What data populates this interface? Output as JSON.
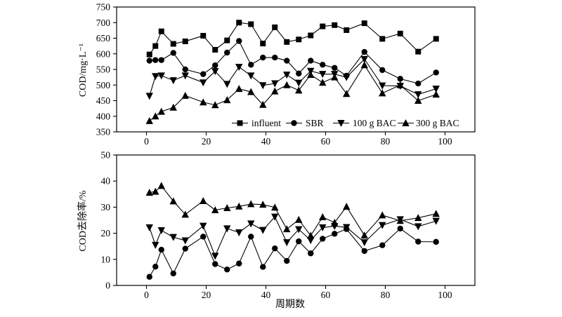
{
  "figure": {
    "background": "#ffffff",
    "ink_color": "#000000",
    "x_axis_label": "周期数"
  },
  "chart_data": [
    {
      "type": "line",
      "panel": "top",
      "title": "",
      "xlabel": "",
      "ylabel": "COD/mg·L⁻¹",
      "xlim": [
        -10,
        110
      ],
      "ylim": [
        350,
        750
      ],
      "xticks": [
        0,
        20,
        40,
        60,
        80,
        100
      ],
      "yticks": [
        350,
        400,
        450,
        500,
        550,
        600,
        650,
        700,
        750
      ],
      "grid": false,
      "legend_position": "inside-bottom",
      "x": [
        1,
        3,
        5,
        9,
        13,
        19,
        23,
        27,
        31,
        35,
        39,
        43,
        47,
        51,
        55,
        59,
        63,
        67,
        73,
        79,
        85,
        91,
        97
      ],
      "series": [
        {
          "name": "influent",
          "marker": "square",
          "values": [
            598,
            625,
            672,
            632,
            640,
            658,
            613,
            643,
            700,
            695,
            633,
            685,
            638,
            646,
            659,
            688,
            692,
            676,
            698,
            648,
            665,
            607,
            648
          ]
        },
        {
          "name": "SBR",
          "marker": "circle",
          "values": [
            578,
            580,
            580,
            603,
            550,
            535,
            563,
            604,
            641,
            565,
            588,
            588,
            578,
            537,
            578,
            565,
            555,
            530,
            606,
            548,
            520,
            505,
            540
          ]
        },
        {
          "name": "100 g BAC",
          "marker": "triangle-down",
          "values": [
            465,
            528,
            530,
            515,
            530,
            508,
            544,
            503,
            558,
            530,
            499,
            505,
            533,
            507,
            545,
            535,
            535,
            525,
            583,
            498,
            497,
            470,
            488
          ]
        },
        {
          "name": "300 g BAC",
          "marker": "triangle-up",
          "values": [
            385,
            400,
            415,
            428,
            466,
            445,
            436,
            452,
            488,
            478,
            437,
            480,
            500,
            483,
            533,
            508,
            525,
            472,
            564,
            474,
            500,
            450,
            470
          ]
        }
      ]
    },
    {
      "type": "line",
      "panel": "bottom",
      "title": "",
      "xlabel": "周期数",
      "ylabel": "COD去除率/%",
      "xlim": [
        -10,
        110
      ],
      "ylim": [
        0,
        50
      ],
      "xticks": [
        0,
        20,
        40,
        60,
        80,
        100
      ],
      "yticks": [
        0,
        10,
        20,
        30,
        40,
        50
      ],
      "grid": false,
      "legend_position": "none",
      "x": [
        1,
        3,
        5,
        9,
        13,
        19,
        23,
        27,
        31,
        35,
        39,
        43,
        47,
        51,
        55,
        59,
        63,
        67,
        73,
        79,
        85,
        91,
        97
      ],
      "series": [
        {
          "name": "SBR",
          "marker": "circle",
          "values": [
            3.3,
            7.2,
            13.7,
            4.6,
            14.1,
            18.7,
            8.2,
            6.1,
            8.4,
            18.7,
            7.1,
            14.2,
            9.4,
            16.9,
            12.3,
            17.9,
            19.8,
            21.6,
            13.2,
            15.4,
            21.8,
            16.8,
            16.7
          ]
        },
        {
          "name": "100 g BAC",
          "marker": "triangle-down",
          "values": [
            22.2,
            15.5,
            21.1,
            18.5,
            17.2,
            22.8,
            11.3,
            21.8,
            20.3,
            23.7,
            21.2,
            26.3,
            16.5,
            21.5,
            17.3,
            22.2,
            22.7,
            22.3,
            16.5,
            23.1,
            25.3,
            22.6,
            24.7
          ]
        },
        {
          "name": "300 g BAC",
          "marker": "triangle-up",
          "values": [
            35.6,
            36.0,
            38.2,
            32.3,
            27.2,
            32.4,
            28.9,
            29.7,
            30.3,
            31.2,
            31.0,
            29.9,
            21.6,
            25.2,
            19.1,
            26.2,
            24.1,
            30.2,
            19.2,
            26.9,
            24.8,
            25.9,
            27.5
          ]
        }
      ]
    }
  ]
}
